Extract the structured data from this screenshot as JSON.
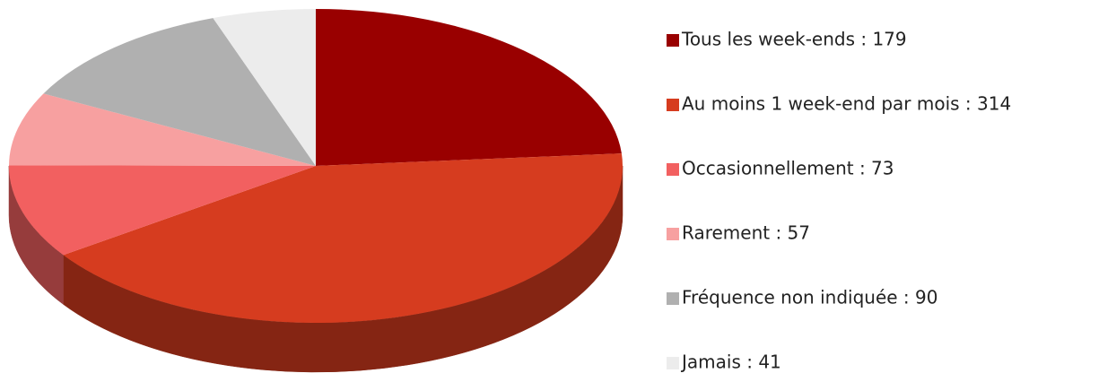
{
  "chart_data": {
    "type": "pie",
    "categories": [
      "Tous les week-ends : 179",
      "Au moins 1 week-end par mois : 314",
      "Occasionnellement : 73",
      "Rarement : 57",
      "Fréquence non indiquée : 90",
      "Jamais : 41"
    ],
    "values": [
      179,
      314,
      73,
      57,
      90,
      41
    ],
    "colors": [
      "#990000",
      "#d63c1f",
      "#f26060",
      "#f7a0a0",
      "#b0b0b0",
      "#ececec"
    ],
    "legend": "right"
  }
}
